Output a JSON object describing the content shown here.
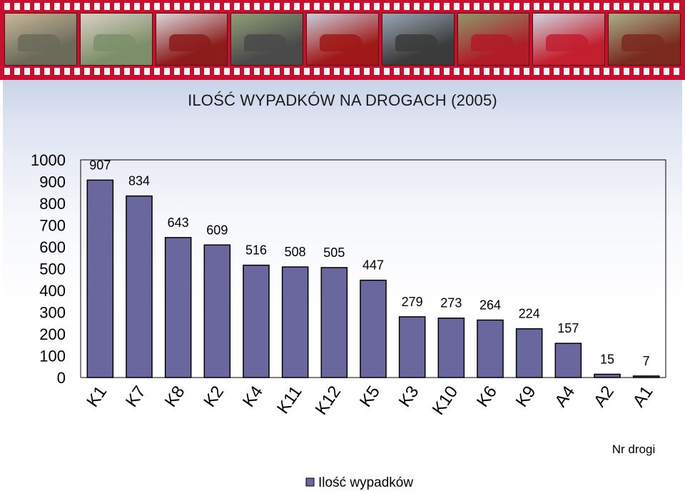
{
  "colors": {
    "bar_fill": "#6a679f",
    "bar_stroke": "#000000",
    "filmstrip": "#c8102e"
  },
  "header": {
    "photo_frames": [
      "car-wreck-photo-icon",
      "car-wreck-photo-icon",
      "train-crash-photo-icon",
      "car-wreck-photo-icon",
      "car-wreck-photo-icon",
      "rescue-photo-icon",
      "car-wreck-photo-icon",
      "truck-crash-photo-icon",
      "tractor-crash-photo-icon"
    ]
  },
  "chart_data": {
    "type": "bar",
    "title": "ILOŚĆ  WYPADKÓW  NA  DROGACH  (2005)",
    "categories": [
      "K1",
      "K7",
      "K8",
      "K2",
      "K4",
      "K11",
      "K12",
      "K5",
      "K3",
      "K10",
      "K6",
      "K9",
      "A4",
      "A2",
      "A1"
    ],
    "series": [
      {
        "name": "Ilość wypadków",
        "values": [
          907,
          834,
          643,
          609,
          516,
          508,
          505,
          447,
          279,
          273,
          264,
          224,
          157,
          15,
          7
        ]
      }
    ],
    "xlabel": "Nr drogi",
    "ylabel": "",
    "ylim": [
      0,
      1000
    ],
    "yticks": [
      0,
      100,
      200,
      300,
      400,
      500,
      600,
      700,
      800,
      900,
      1000
    ],
    "grid": false,
    "legend": "bottom"
  }
}
